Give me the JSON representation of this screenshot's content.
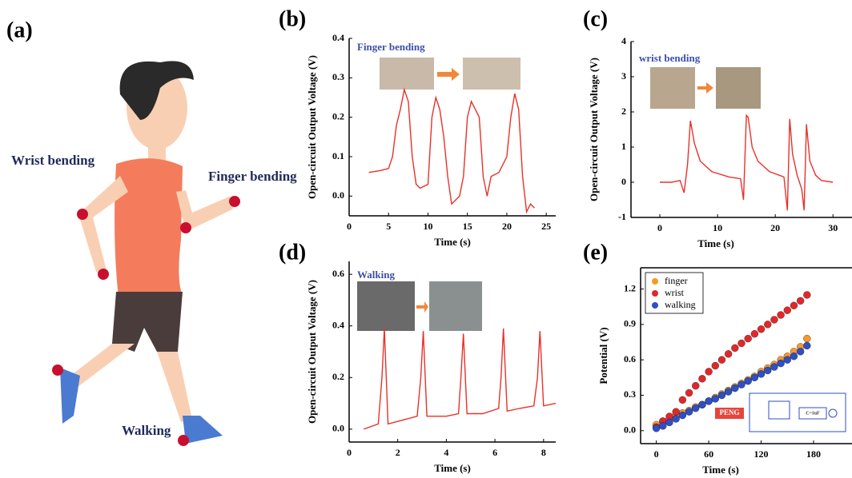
{
  "illustration": {
    "panel_label": "(a)",
    "annotations": [
      "Wrist bending",
      "Finger bending",
      "Walking"
    ]
  },
  "chart_data": [
    {
      "type": "line",
      "panel_label": "(b)",
      "annotation": "Finger bending",
      "x_label": "Time (s)",
      "y_label": "Open-circuit Output Voltage (V)",
      "color": "#e8312a",
      "x": [
        2.5,
        4,
        5,
        5.5,
        6,
        6.5,
        7,
        7.5,
        8,
        8.5,
        9,
        10,
        10.5,
        11,
        11.5,
        12,
        12.5,
        13,
        14,
        14.5,
        15,
        15.5,
        16,
        16.5,
        17,
        17.5,
        18,
        19,
        20,
        20.5,
        21,
        21.5,
        22,
        22.5,
        23,
        23.5
      ],
      "values": [
        0.06,
        0.065,
        0.07,
        0.1,
        0.18,
        0.22,
        0.27,
        0.24,
        0.1,
        0.03,
        0.02,
        0.03,
        0.2,
        0.25,
        0.22,
        0.15,
        0.05,
        -0.02,
        0.0,
        0.05,
        0.2,
        0.24,
        0.22,
        0.2,
        0.05,
        0.0,
        0.05,
        0.06,
        0.1,
        0.2,
        0.26,
        0.22,
        0.05,
        -0.04,
        -0.02,
        -0.03
      ],
      "xlim": [
        0,
        26.2
      ],
      "xticks": [
        0,
        5,
        10,
        15,
        20,
        25
      ],
      "ylim": [
        -0.05,
        0.4
      ],
      "yticks": [
        {
          "value": 0,
          "label": "0.0"
        },
        0.1,
        0.2,
        0.3,
        0.4
      ]
    },
    {
      "type": "line",
      "panel_label": "(c)",
      "annotation": "wrist bending",
      "x_label": "Time (s)",
      "y_label": "Open-circuit Output Voltage (V)",
      "color": "#e8312a",
      "x": [
        0,
        2,
        3.5,
        4.2,
        4.8,
        5.3,
        6,
        7,
        9,
        12,
        14,
        14.5,
        15,
        15.3,
        16,
        17,
        19,
        21.5,
        22.1,
        22.5,
        23,
        23.8,
        24.6,
        25,
        25.4,
        26,
        27,
        28,
        30
      ],
      "values": [
        0,
        0,
        0.05,
        -0.3,
        0.5,
        1.75,
        1.1,
        0.6,
        0.3,
        0.15,
        0.1,
        -0.5,
        1.9,
        1.85,
        1.0,
        0.6,
        0.3,
        0.15,
        -0.8,
        1.8,
        0.8,
        0.2,
        -0.2,
        -0.8,
        1.65,
        0.6,
        0.2,
        0.05,
        0
      ],
      "xlim": [
        -5,
        33.3
      ],
      "xticks": [
        0,
        10,
        20,
        30
      ],
      "ylim": [
        -1,
        4
      ],
      "yticks": [
        -1,
        0,
        1,
        2,
        3,
        4
      ]
    },
    {
      "type": "line",
      "panel_label": "(d)",
      "annotation": "Walking",
      "x_label": "Time (s)",
      "y_label": "Open-circuit Output Voltage (V)",
      "color": "#e8312a",
      "x": [
        0.6,
        1.2,
        1.35,
        1.45,
        1.6,
        2,
        2.8,
        2.95,
        3.05,
        3.2,
        4,
        4.5,
        4.6,
        4.7,
        4.85,
        5.5,
        6.15,
        6.25,
        6.35,
        6.5,
        7,
        7.6,
        7.75,
        7.85,
        8,
        8.5
      ],
      "values": [
        0.0,
        0.02,
        0.2,
        0.39,
        0.02,
        0.03,
        0.05,
        0.2,
        0.38,
        0.05,
        0.05,
        0.06,
        0.2,
        0.37,
        0.06,
        0.06,
        0.08,
        0.2,
        0.39,
        0.07,
        0.08,
        0.09,
        0.2,
        0.38,
        0.09,
        0.1
      ],
      "xlim": [
        0,
        8.5
      ],
      "xticks": [
        0,
        2,
        4,
        6,
        8
      ],
      "ylim": [
        -0.05,
        0.65
      ],
      "yticks": [
        {
          "value": 0,
          "label": "0.0"
        },
        0.2,
        0.4,
        0.6
      ]
    },
    {
      "type": "scatter",
      "panel_label": "(e)",
      "x_label": "Time (s)",
      "y_label": "Potential (V)",
      "legend": "upper-left",
      "circuit_labels": [
        "PENG",
        "C~1uF"
      ],
      "x": [
        0,
        7.5,
        15,
        22.5,
        30,
        37.5,
        45,
        52.5,
        60,
        67.5,
        75,
        82.5,
        90,
        97.5,
        105,
        112.5,
        120,
        127.5,
        135,
        142.5,
        150,
        157.5,
        165,
        172.5
      ],
      "series": [
        {
          "name": "finger",
          "color": "#f39a2c",
          "values": [
            0.05,
            0.08,
            0.1,
            0.13,
            0.15,
            0.17,
            0.2,
            0.22,
            0.25,
            0.28,
            0.31,
            0.34,
            0.37,
            0.4,
            0.43,
            0.46,
            0.5,
            0.53,
            0.56,
            0.6,
            0.63,
            0.67,
            0.71,
            0.78
          ]
        },
        {
          "name": "wrist",
          "color": "#e0282a",
          "values": [
            0.03,
            0.08,
            0.12,
            0.16,
            0.26,
            0.32,
            0.38,
            0.44,
            0.5,
            0.55,
            0.6,
            0.65,
            0.7,
            0.74,
            0.78,
            0.82,
            0.86,
            0.9,
            0.94,
            0.98,
            1.02,
            1.06,
            1.1,
            1.15
          ]
        },
        {
          "name": "walking",
          "color": "#2f4fc4",
          "values": [
            0.02,
            0.04,
            0.07,
            0.1,
            0.13,
            0.16,
            0.19,
            0.22,
            0.25,
            0.27,
            0.3,
            0.33,
            0.36,
            0.39,
            0.42,
            0.45,
            0.48,
            0.51,
            0.54,
            0.57,
            0.6,
            0.63,
            0.67,
            0.72
          ]
        }
      ],
      "xlim": [
        -18,
        224
      ],
      "xticks": [
        0,
        60,
        120,
        180
      ],
      "ylim": [
        -0.11,
        1.38
      ],
      "yticks": [
        {
          "value": 0,
          "label": "0.0"
        },
        0.3,
        0.6,
        0.9,
        1.2
      ]
    }
  ]
}
